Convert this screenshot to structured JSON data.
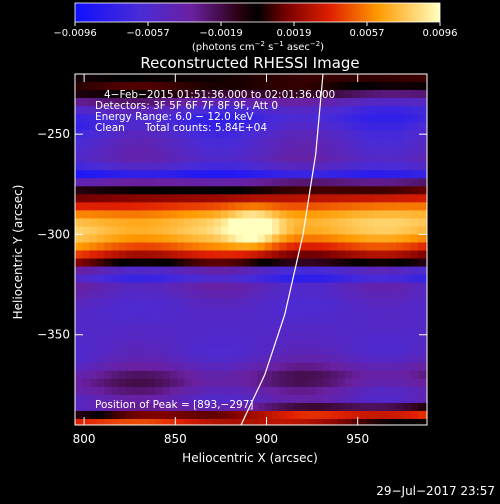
{
  "colorbar": {
    "ticks": [
      "−0.0096",
      "−0.0057",
      "−0.0019",
      "0.0019",
      "0.0057",
      "0.0096"
    ],
    "unit_prefix": "(photons cm",
    "unit_exp1": "−2",
    "unit_mid": " s",
    "unit_exp2": "−1",
    "unit_mid2": " asec",
    "unit_exp3": "−2",
    "unit_suffix": ")"
  },
  "header": {
    "line1": "4−Feb−2015 01:51:36.000 to 02:01:36.000",
    "line2": "Detectors: 3F 5F 6F 7F 8F 9F, Att 0",
    "line3": "Energy Range: 6.0 − 12.0 keV",
    "line4_a": "Clean",
    "line4_b": "Total counts: 5.84E+04"
  },
  "peak_text": "Position of Peak = [893,−297]",
  "footer_timestamp": "29−Jul−2017 23:57",
  "chart_data": {
    "type": "heatmap",
    "title": "Reconstructed RHESSI Image",
    "xlabel": "Heliocentric X (arcsec)",
    "ylabel": "Heliocentric Y (arcsec)",
    "xlim": [
      795,
      988
    ],
    "ylim": [
      -395,
      -220
    ],
    "xticks": [
      800,
      850,
      900,
      950
    ],
    "yticks": [
      -250,
      -300,
      -350
    ],
    "ytick_labels": [
      "−250",
      "−300",
      "−350"
    ],
    "colorbar_range": [
      -0.0096,
      0.0096
    ],
    "peak": [
      893,
      -297
    ],
    "bands": [
      {
        "y_center": -224,
        "half_width": 9,
        "level": 0.52
      },
      {
        "y_center": -242,
        "half_width": 7,
        "level": 0.12
      },
      {
        "y_center": -296,
        "half_width": 20,
        "level": 0.88
      },
      {
        "y_center": -334,
        "half_width": 9,
        "level": 0.18
      },
      {
        "y_center": -372,
        "half_width": 8,
        "level": 0.33
      },
      {
        "y_center": -392,
        "half_width": 5,
        "level": 0.7
      }
    ],
    "limb_curve": [
      [
        931,
        -220
      ],
      [
        927,
        -260
      ],
      [
        920,
        -300
      ],
      [
        910,
        -340
      ],
      [
        899,
        -370
      ],
      [
        886,
        -395
      ]
    ]
  }
}
